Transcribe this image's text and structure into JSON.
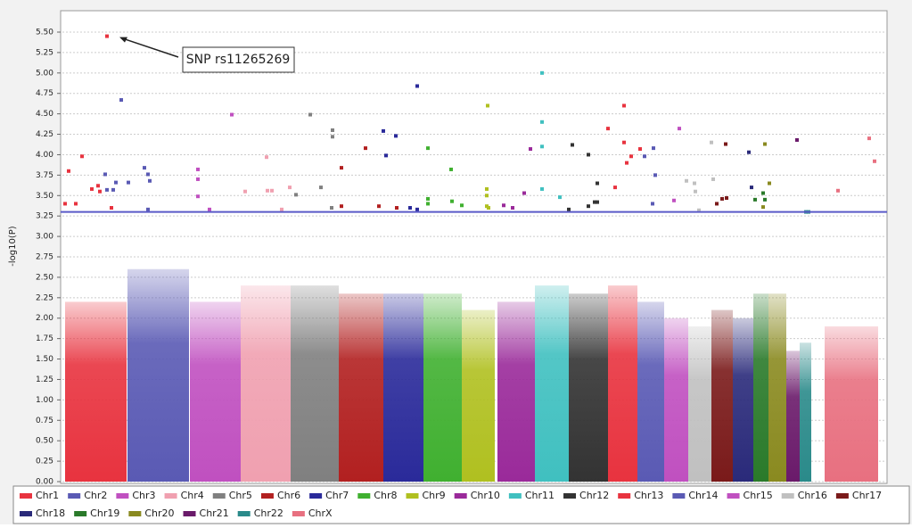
{
  "chart_data": {
    "type": "scatter",
    "ylabel": "-log10(P)",
    "xlim": [
      0,
      925
    ],
    "ylim": [
      0,
      5.5
    ],
    "yticks": [
      {
        "value": 0,
        "label": "0.00"
      },
      {
        "value": 0.25,
        "label": "0.25"
      },
      {
        "value": 0.5,
        "label": "0.50"
      },
      {
        "value": 0.75,
        "label": "0.75"
      },
      {
        "value": 1,
        "label": "1.00"
      },
      {
        "value": 1.25,
        "label": "1.25"
      },
      {
        "value": 1.5,
        "label": "1.50"
      },
      {
        "value": 1.75,
        "label": "1.75"
      },
      {
        "value": 2,
        "label": "2.00"
      },
      {
        "value": 2.25,
        "label": "2.25"
      },
      {
        "value": 2.5,
        "label": "2.50"
      },
      {
        "value": 2.75,
        "label": "2.75"
      },
      {
        "value": 3,
        "label": "3.00"
      },
      {
        "value": 3.25,
        "label": "3.25"
      },
      {
        "value": 3.5,
        "label": "3.50"
      },
      {
        "value": 3.75,
        "label": "3.75"
      },
      {
        "value": 4,
        "label": "4.00"
      },
      {
        "value": 4.25,
        "label": "4.25"
      },
      {
        "value": 4.5,
        "label": "4.50"
      },
      {
        "value": 4.75,
        "label": "4.75"
      },
      {
        "value": 5,
        "label": "5.00"
      },
      {
        "value": 5.25,
        "label": "5.25"
      },
      {
        "value": 5.5,
        "label": "5.50"
      }
    ],
    "grid": true,
    "threshold": {
      "value": 3.3,
      "color": "#5a5ac8"
    },
    "annotation": {
      "text": "SNP rs11265269",
      "x": 50,
      "y": 5.45
    },
    "series": [
      {
        "name": "Chr1",
        "color": "#e8333f",
        "span": [
          3,
          72
        ],
        "peak": 2.2,
        "x": [
          3,
          7,
          15,
          22,
          33,
          40,
          42,
          50,
          55
        ],
        "values": [
          3.4,
          3.8,
          3.4,
          3.98,
          3.58,
          3.62,
          3.55,
          5.45,
          3.35
        ]
      },
      {
        "name": "Chr2",
        "color": "#5a5ab4",
        "span": [
          73,
          142
        ],
        "peak": 2.6,
        "x": [
          48,
          50,
          57,
          60,
          66,
          74,
          92,
          96,
          98,
          96
        ],
        "values": [
          3.76,
          3.57,
          3.57,
          3.66,
          4.67,
          3.66,
          3.84,
          3.76,
          3.68,
          3.33
        ]
      },
      {
        "name": "Chr3",
        "color": "#c050c0",
        "span": [
          143,
          200
        ],
        "peak": 2.2,
        "x": [
          152,
          152,
          152,
          165,
          190
        ],
        "values": [
          3.82,
          3.7,
          3.49,
          3.33,
          4.49
        ]
      },
      {
        "name": "Chr4",
        "color": "#f0a0b0",
        "span": [
          200,
          256
        ],
        "peak": 2.4,
        "x": [
          205,
          229,
          230,
          235,
          255,
          246
        ],
        "values": [
          3.55,
          3.97,
          3.56,
          3.56,
          3.6,
          3.33
        ]
      },
      {
        "name": "Chr5",
        "color": "#808080",
        "span": [
          256,
          310
        ],
        "peak": 2.4,
        "x": [
          262,
          278,
          290,
          303,
          303,
          302
        ],
        "values": [
          3.51,
          4.49,
          3.6,
          4.3,
          4.22,
          3.35
        ]
      },
      {
        "name": "Chr6",
        "color": "#b22020",
        "span": [
          310,
          360
        ],
        "peak": 2.3,
        "x": [
          313,
          313,
          340,
          355,
          375
        ],
        "values": [
          3.84,
          3.37,
          4.08,
          3.37,
          3.35
        ]
      },
      {
        "name": "Chr7",
        "color": "#2a2a9a",
        "span": [
          360,
          405
        ],
        "peak": 2.3,
        "x": [
          360,
          363,
          374,
          390,
          398,
          398
        ],
        "values": [
          4.29,
          3.99,
          4.23,
          3.35,
          4.84,
          3.33
        ]
      },
      {
        "name": "Chr8",
        "color": "#40b030",
        "span": [
          405,
          448
        ],
        "peak": 2.3,
        "x": [
          410,
          410,
          410,
          436,
          437,
          448
        ],
        "values": [
          4.08,
          3.46,
          3.4,
          3.82,
          3.43,
          3.38
        ]
      },
      {
        "name": "Chr9",
        "color": "#b0c020",
        "span": [
          448,
          485
        ],
        "peak": 2.1,
        "x": [
          477,
          476,
          476,
          476,
          478
        ],
        "values": [
          4.6,
          3.58,
          3.5,
          3.37,
          3.35
        ]
      },
      {
        "name": "Chr10",
        "color": "#9a2a9a",
        "span": [
          488,
          530
        ],
        "peak": 2.2,
        "x": [
          495,
          505,
          518,
          525
        ],
        "values": [
          3.38,
          3.35,
          3.53,
          4.07
        ]
      },
      {
        "name": "Chr11",
        "color": "#40c0c0",
        "span": [
          530,
          568
        ],
        "peak": 2.4,
        "x": [
          538,
          538,
          538,
          538,
          558
        ],
        "values": [
          5.0,
          4.4,
          4.1,
          3.58,
          3.48
        ]
      },
      {
        "name": "Chr12",
        "color": "#333333",
        "span": [
          568,
          612
        ],
        "peak": 2.3,
        "x": [
          572,
          590,
          600,
          597,
          600,
          590,
          568
        ],
        "values": [
          4.12,
          4.0,
          3.65,
          3.42,
          3.42,
          3.37,
          3.33
        ]
      },
      {
        "name": "Chr13",
        "color": "#e8333f",
        "span": [
          612,
          645
        ],
        "peak": 2.4,
        "x": [
          612,
          620,
          630,
          630,
          633,
          638,
          648
        ],
        "values": [
          4.32,
          3.6,
          4.6,
          4.15,
          3.9,
          3.98,
          4.07
        ]
      },
      {
        "name": "Chr14",
        "color": "#5a5ab4",
        "span": [
          645,
          675
        ],
        "peak": 2.2,
        "x": [
          653,
          663,
          665,
          662
        ],
        "values": [
          3.98,
          4.08,
          3.75,
          3.4
        ]
      },
      {
        "name": "Chr15",
        "color": "#c050c0",
        "span": [
          675,
          702
        ],
        "peak": 2.0,
        "x": [
          686,
          692
        ],
        "values": [
          3.44,
          4.32
        ]
      },
      {
        "name": "Chr16",
        "color": "#c0c0c0",
        "span": [
          702,
          728
        ],
        "peak": 1.9,
        "x": [
          700,
          709,
          710,
          714,
          728,
          730
        ],
        "values": [
          3.68,
          3.65,
          3.55,
          3.32,
          4.15,
          3.7
        ]
      },
      {
        "name": "Chr17",
        "color": "#7a1a1a",
        "span": [
          728,
          752
        ],
        "peak": 2.1,
        "x": [
          740,
          744,
          734,
          745
        ],
        "values": [
          3.46,
          4.13,
          3.4,
          3.47
        ]
      },
      {
        "name": "Chr18",
        "color": "#2a2a7a",
        "span": [
          752,
          775
        ],
        "peak": 2.0,
        "x": [
          770,
          773
        ],
        "values": [
          4.03,
          3.6
        ]
      },
      {
        "name": "Chr19",
        "color": "#2a7a2a",
        "span": [
          775,
          792
        ],
        "peak": 2.3,
        "x": [
          777,
          788,
          786
        ],
        "values": [
          3.45,
          3.45,
          3.53
        ]
      },
      {
        "name": "Chr20",
        "color": "#8a8a20",
        "span": [
          792,
          812
        ],
        "peak": 2.3,
        "x": [
          788,
          793,
          786
        ],
        "values": [
          4.13,
          3.65,
          3.36
        ]
      },
      {
        "name": "Chr21",
        "color": "#6a1a6a",
        "span": [
          812,
          827
        ],
        "peak": 1.6,
        "x": [
          824
        ],
        "values": [
          4.18
        ]
      },
      {
        "name": "Chr22",
        "color": "#2a8a8a",
        "span": [
          827,
          840
        ],
        "peak": 1.7,
        "x": [
          834,
          837
        ],
        "values": [
          3.3,
          3.3
        ]
      },
      {
        "name": "ChrX",
        "color": "#e87080",
        "span": [
          855,
          915
        ],
        "peak": 1.9,
        "x": [
          870,
          905,
          911
        ],
        "values": [
          3.56,
          4.2,
          3.92
        ]
      }
    ]
  }
}
